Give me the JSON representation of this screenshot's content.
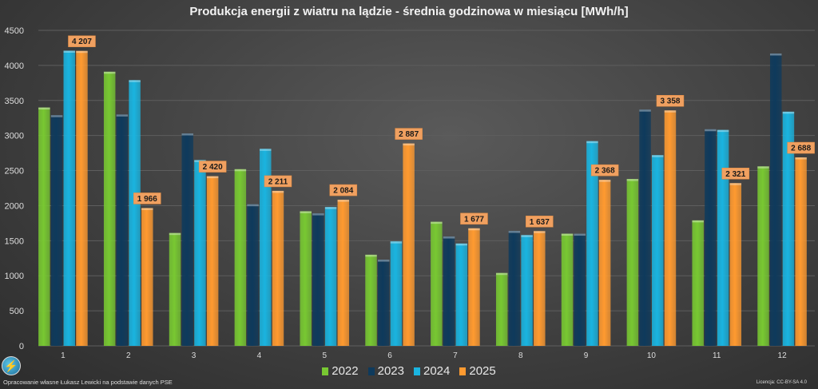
{
  "chart_data": {
    "type": "bar",
    "title": "Produkcja energii z wiatru na lądzie - średnia godzinowa w miesiącu [MWh/h]",
    "categories": [
      "1",
      "2",
      "3",
      "4",
      "5",
      "6",
      "7",
      "8",
      "9",
      "10",
      "11",
      "12"
    ],
    "ylim": [
      0,
      4500
    ],
    "yticks": [
      0,
      500,
      1000,
      1500,
      2000,
      2500,
      3000,
      3500,
      4000,
      4500
    ],
    "grid": true,
    "legend_position": "bottom",
    "series": [
      {
        "name": "2022",
        "color": "#78c832",
        "values": [
          3400,
          3910,
          1610,
          2520,
          1920,
          1300,
          1770,
          1040,
          1600,
          2380,
          1790,
          2560
        ]
      },
      {
        "name": "2023",
        "color": "#0e3a5c",
        "values": [
          3290,
          3300,
          3030,
          2020,
          1890,
          1230,
          1560,
          1640,
          1600,
          3370,
          3090,
          4170
        ]
      },
      {
        "name": "2024",
        "color": "#1ab4e0",
        "values": [
          4210,
          3790,
          2650,
          2810,
          1980,
          1490,
          1460,
          1580,
          2920,
          2720,
          3080,
          3340
        ]
      },
      {
        "name": "2025",
        "color": "#ff9a30",
        "values": [
          4207,
          1966,
          2420,
          2211,
          2084,
          2887,
          1677,
          1637,
          2368,
          3358,
          2321,
          2688
        ],
        "labels": [
          "4 207",
          "1 966",
          "2 420",
          "2 211",
          "2 084",
          "2 887",
          "1 677",
          "1 637",
          "2 368",
          "3 358",
          "2 321",
          "2 688"
        ]
      }
    ]
  },
  "footer": {
    "source": "Opracowanie własne Łukasz Lewicki na podstawie danych PSE",
    "license": "Licencja: CC-BY-SA 4.0"
  }
}
